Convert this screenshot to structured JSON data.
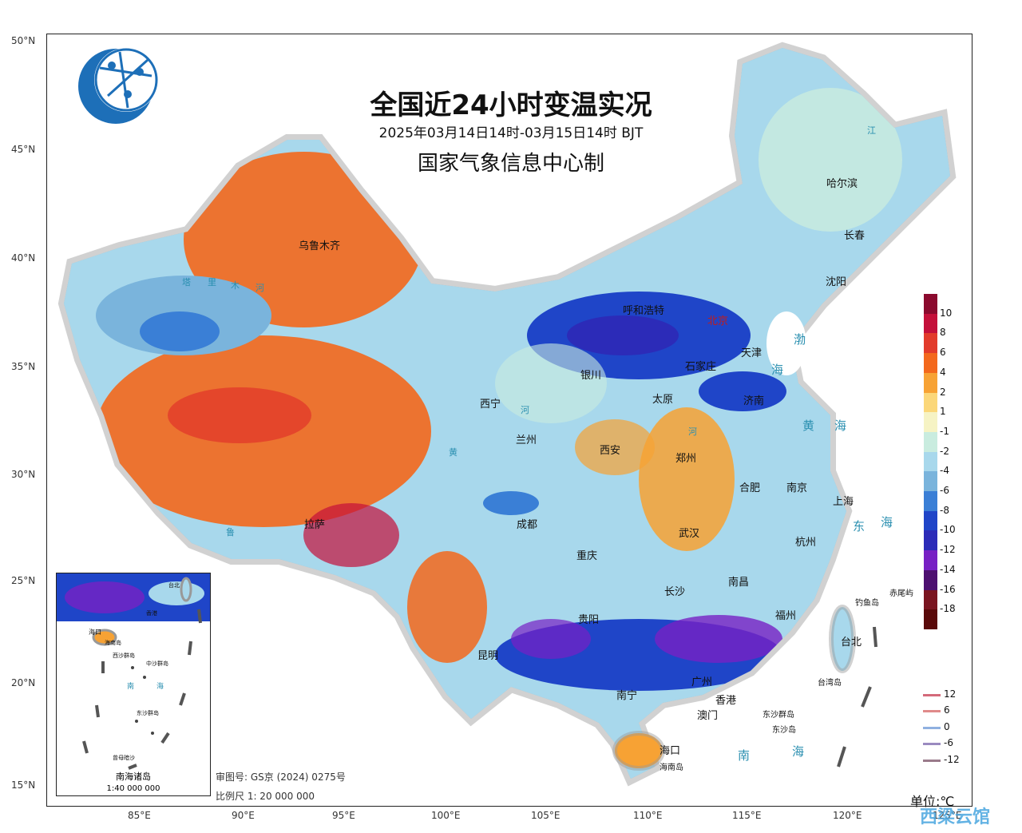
{
  "map": {
    "title": "全国近24小时变温实况",
    "subtitle_time": "2025年03月14日14时-03月15日14时 BJT",
    "subtitle_agency": "国家气象信息中心制",
    "unit": "单位:℃",
    "lat_labels": [
      "50°N",
      "45°N",
      "40°N",
      "35°N",
      "30°N",
      "25°N",
      "20°N",
      "15°N"
    ],
    "lon_labels": [
      "85°E",
      "90°E",
      "95°E",
      "100°E",
      "105°E",
      "110°E",
      "115°E",
      "120°E",
      "125°E"
    ],
    "cities": [
      "乌鲁木齐",
      "哈尔滨",
      "长春",
      "沈阳",
      "呼和浩特",
      "北京",
      "天津",
      "银川",
      "石家庄",
      "太原",
      "济南",
      "西宁",
      "兰州",
      "西安",
      "郑州",
      "合肥",
      "南京",
      "上海",
      "成都",
      "拉萨",
      "武汉",
      "杭州",
      "重庆",
      "南昌",
      "长沙",
      "福州",
      "贵阳",
      "昆明",
      "台北",
      "南宁",
      "广州",
      "香港",
      "澳门",
      "海口"
    ],
    "seas": [
      "渤",
      "海",
      "黄",
      "海",
      "东",
      "海",
      "南",
      "海"
    ],
    "islands": [
      "钓鱼岛",
      "赤尾屿",
      "东沙群岛",
      "东沙岛",
      "台湾岛",
      "海南岛"
    ],
    "rivers": [
      "塔",
      "里",
      "木",
      "河",
      "黄",
      "河",
      "河",
      "鲁",
      "江"
    ]
  },
  "legend": {
    "values": [
      "10",
      "8",
      "6",
      "4",
      "2",
      "1",
      "-1",
      "-2",
      "-4",
      "-6",
      "-8",
      "-10",
      "-12",
      "-14",
      "-16",
      "-18"
    ],
    "colors": [
      "#8b0a2e",
      "#c4103a",
      "#e23b2b",
      "#f3681c",
      "#f7a234",
      "#fbd779",
      "#f6f3c4",
      "#c9ecdf",
      "#a8d8ec",
      "#7ab4dc",
      "#3a7fd6",
      "#1f45c8",
      "#2c2bb8",
      "#7720c4",
      "#4d1070",
      "#7a1520",
      "#5a0a0a"
    ],
    "line_values": [
      "12",
      "6",
      "0",
      "-6",
      "-12"
    ],
    "line_colors": [
      "#d46a7a",
      "#e08a8a",
      "#8fb0e0",
      "#9a8ac0",
      "#9a7a8a"
    ]
  },
  "inset": {
    "title": "南海诸岛",
    "scale": "1:40 000 000",
    "labels": [
      "海口",
      "海南岛",
      "西沙群岛",
      "中沙群岛",
      "南",
      "海",
      "东沙群岛",
      "香港",
      "台北",
      "曾母暗沙"
    ]
  },
  "notes": {
    "approval": "审图号: GS京 (2024) 0275号",
    "scale": "比例尺 1: 20 000 000"
  },
  "watermark": "西梁云馆"
}
